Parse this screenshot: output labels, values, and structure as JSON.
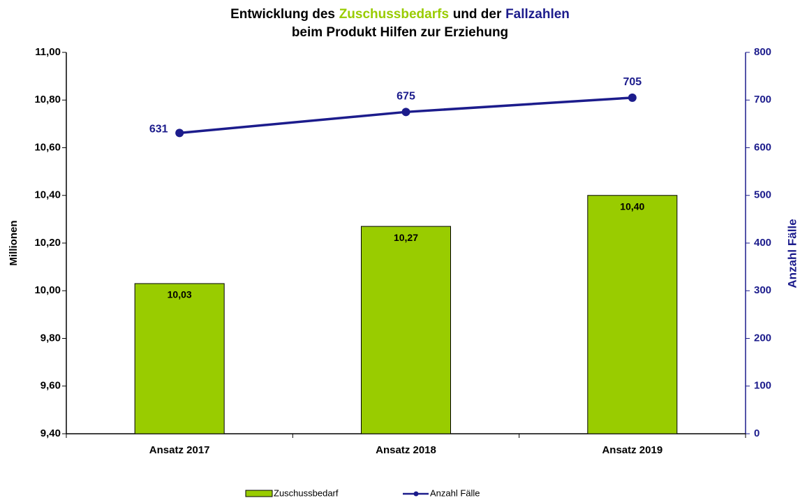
{
  "chart_data": {
    "type": "bar",
    "title_parts": [
      "Entwicklung des",
      "Zuschussbedarfs",
      "und der",
      "Fallzahlen"
    ],
    "subtitle": "beim Produkt Hilfen zur Erziehung",
    "categories": [
      "Ansatz 2017",
      "Ansatz 2018",
      "Ansatz 2019"
    ],
    "series": [
      {
        "name": "Zuschussbedarf",
        "type": "bar",
        "color": "#99cc00",
        "values": [
          10.03,
          10.27,
          10.4
        ],
        "value_labels": [
          "10,03",
          "10,27",
          "10,40"
        ]
      },
      {
        "name": "Anzahl Fälle",
        "type": "line",
        "axis": "y2",
        "color": "#1c1c8c",
        "values": [
          631,
          675,
          705
        ]
      }
    ],
    "ylabel": "Millionen",
    "y2label": "Anzahl Fälle",
    "ylim": [
      9.4,
      11.0
    ],
    "yticks": [
      {
        "value": 9.4,
        "label": "9,40"
      },
      {
        "value": 9.6,
        "label": "9,60"
      },
      {
        "value": 9.8,
        "label": "9,80"
      },
      {
        "value": 10.0,
        "label": "10,00"
      },
      {
        "value": 10.2,
        "label": "10,20"
      },
      {
        "value": 10.4,
        "label": "10,40"
      },
      {
        "value": 10.6,
        "label": "10,60"
      },
      {
        "value": 10.8,
        "label": "10,80"
      },
      {
        "value": 11.0,
        "label": "11,00"
      }
    ],
    "y2lim": [
      0,
      800
    ],
    "y2ticks": [
      0,
      100,
      200,
      300,
      400,
      500,
      600,
      700,
      800
    ],
    "grid": false,
    "legend": "bottom"
  }
}
